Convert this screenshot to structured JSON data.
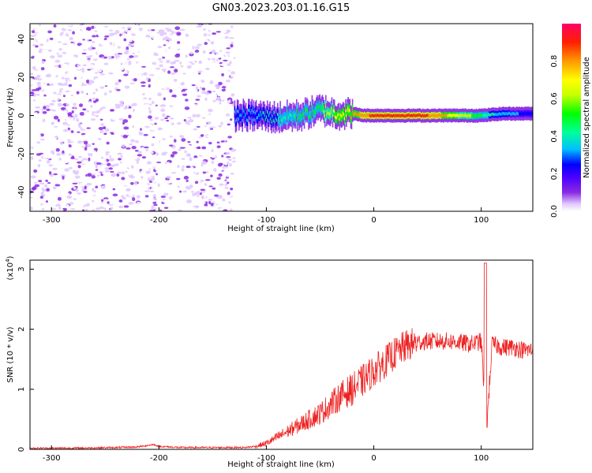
{
  "title": "GN03.2023.203.01.16.G15",
  "top_panel": {
    "ylabel": "Frequency (Hz)",
    "xlabel": "Height of straight line (km)",
    "colorbar_label": "Normalized spectral amplitude"
  },
  "bottom_panel": {
    "ylabel": "SNR (10 * v/v)",
    "xlabel": "Height of straight line (km)",
    "yexp_prefix": "(x10",
    "yexp_power": "4",
    "yexp_suffix": ")"
  },
  "chart_data": [
    {
      "type": "heatmap",
      "title": "GN03.2023.203.01.16.G15",
      "xlabel": "Height of straight line (km)",
      "ylabel": "Frequency (Hz)",
      "xlim": [
        -320,
        148
      ],
      "ylim": [
        -50,
        48
      ],
      "xticks": [
        -300,
        -200,
        -100,
        0,
        100
      ],
      "yticks": [
        -40,
        -20,
        0,
        20,
        40
      ],
      "colorbar": {
        "label": "Normalized spectral amplitude",
        "range": [
          0,
          1
        ],
        "ticks": [
          0.0,
          0.2,
          0.4,
          0.6,
          0.8
        ],
        "colormap": [
          "#ffffff",
          "#e0c8ff",
          "#8a2be2",
          "#4b00ff",
          "#0000ff",
          "#00bfff",
          "#00ff9a",
          "#00ff00",
          "#c8ff00",
          "#ffff00",
          "#ff9900",
          "#ff2000",
          "#ff0066"
        ]
      },
      "ridge": {
        "x_km": [
          -130,
          -110,
          -90,
          -70,
          -50,
          -35,
          -20,
          -10,
          0,
          20,
          40,
          60,
          80,
          100,
          120,
          148
        ],
        "freq_hz": [
          0,
          0,
          -1,
          0,
          3,
          1,
          1,
          0,
          0,
          0,
          0,
          0,
          0,
          0,
          1,
          1
        ],
        "amplitude": [
          0.45,
          0.45,
          0.5,
          0.55,
          0.6,
          0.75,
          0.8,
          0.85,
          0.9,
          0.9,
          0.9,
          0.85,
          0.7,
          0.55,
          0.4,
          0.35
        ]
      },
      "noise_region_km": [
        -320,
        -130
      ],
      "grid": false
    },
    {
      "type": "line",
      "xlabel": "Height of straight line (km)",
      "ylabel": "SNR (10 * v/v)",
      "y_scale_note": "x10^4",
      "xlim": [
        -320,
        148
      ],
      "ylim": [
        0,
        3.15
      ],
      "xticks": [
        -300,
        -200,
        -100,
        0,
        100
      ],
      "yticks": [
        0,
        1,
        2,
        3
      ],
      "series": [
        {
          "color": "#ee2222",
          "x": [
            -320,
            -280,
            -240,
            -220,
            -205,
            -200,
            -180,
            -150,
            -120,
            -110,
            -100,
            -90,
            -80,
            -70,
            -60,
            -50,
            -40,
            -30,
            -20,
            -10,
            0,
            10,
            20,
            30,
            40,
            50,
            60,
            70,
            80,
            90,
            100,
            105,
            110,
            120,
            130,
            140,
            148
          ],
          "y": [
            0.02,
            0.02,
            0.03,
            0.04,
            0.08,
            0.05,
            0.03,
            0.03,
            0.03,
            0.05,
            0.1,
            0.2,
            0.3,
            0.4,
            0.5,
            0.6,
            0.75,
            0.9,
            1.0,
            1.15,
            1.3,
            1.45,
            1.6,
            1.72,
            1.78,
            1.8,
            1.8,
            1.8,
            1.78,
            1.75,
            1.8,
            0.3,
            1.75,
            1.7,
            1.7,
            1.65,
            1.65
          ]
        }
      ],
      "grid": false
    }
  ]
}
